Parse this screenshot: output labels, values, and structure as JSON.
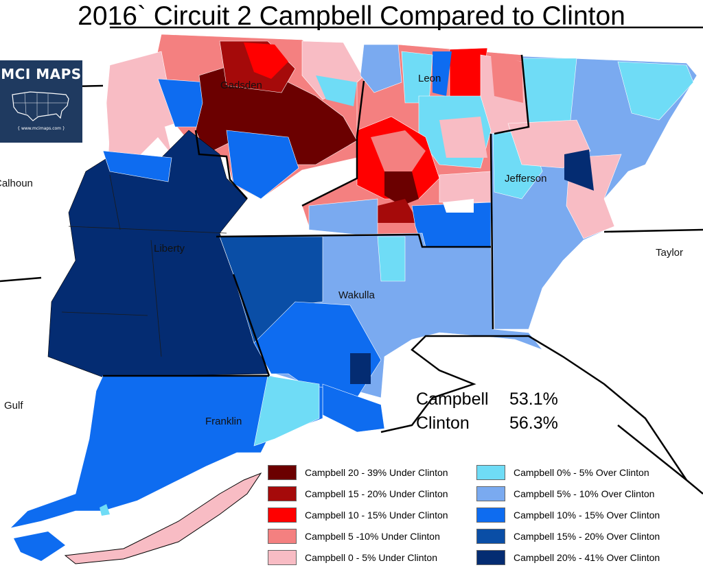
{
  "title": "2016` Circuit 2 Campbell Compared to Clinton",
  "colors": {
    "under_20_39": "#6b0000",
    "under_15_20": "#a50a0a",
    "under_10_15": "#ff0000",
    "under_5_10": "#f48080",
    "under_0_5": "#f8bcc4",
    "over_0_5": "#6fdcf6",
    "over_5_10": "#7aaaf0",
    "over_10_15": "#0e6cf0",
    "over_15_20": "#0a4ea6",
    "over_20_41": "#042c72"
  },
  "counties": {
    "gadsden": "Gadsden",
    "leon": "Leon",
    "jefferson": "Jefferson",
    "liberty": "Liberty",
    "wakulla": "Wakulla",
    "franklin": "Franklin",
    "calhoun": "Calhoun",
    "taylor": "Taylor",
    "gulf": "Gulf"
  },
  "badge": {
    "title": "MCI MAPS",
    "url": "{ www.mcimaps.com }",
    "icon": "usa-map-icon"
  },
  "summary": {
    "campbell_label": "Campbell",
    "campbell_value": "53.1%",
    "clinton_label": "Clinton",
    "clinton_value": "56.3%"
  },
  "legend": {
    "left": [
      {
        "label": "Campbell 20 - 39% Under Clinton",
        "color": "#6b0000"
      },
      {
        "label": "Campbell 15 - 20% Under Clinton",
        "color": "#a50a0a"
      },
      {
        "label": "Campbell 10 - 15% Under Clinton",
        "color": "#ff0000"
      },
      {
        "label": "Campbell 5 -10% Under Clinton",
        "color": "#f48080"
      },
      {
        "label": "Campbell 0 - 5% Under Clinton",
        "color": "#f8bcc4"
      }
    ],
    "right": [
      {
        "label": "Campbell 0% - 5% Over Clinton",
        "color": "#6fdcf6"
      },
      {
        "label": "Campbell 5% - 10% Over Clinton",
        "color": "#7aaaf0"
      },
      {
        "label": "Campbell 10% - 15% Over Clinton",
        "color": "#0e6cf0"
      },
      {
        "label": "Campbell 15% - 20% Over Clinton",
        "color": "#0a4ea6"
      },
      {
        "label": "Campbell 20% - 41% Over Clinton",
        "color": "#042c72"
      }
    ]
  }
}
